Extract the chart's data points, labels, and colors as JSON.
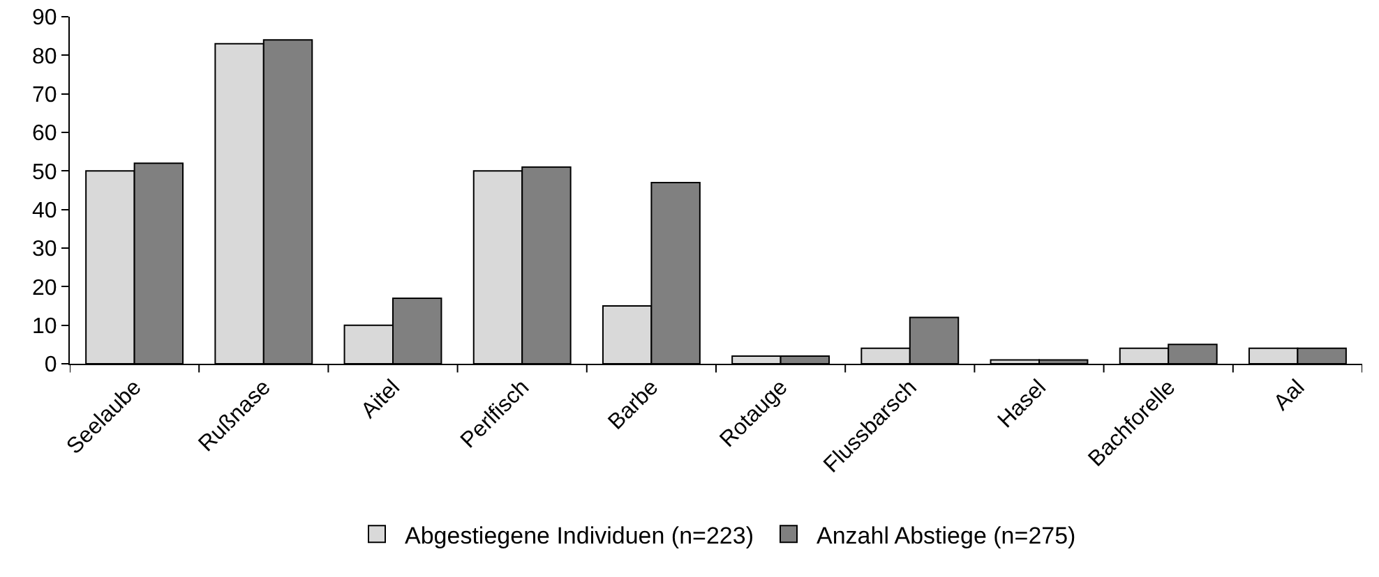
{
  "chart_data": {
    "type": "bar",
    "categories": [
      "Seelaube",
      "Rußnase",
      "Aitel",
      "Perlfisch",
      "Barbe",
      "Rotauge",
      "Flussbarsch",
      "Hasel",
      "Bachforelle",
      "Aal"
    ],
    "series": [
      {
        "name": "Abgestiegene Individuen (n=223)",
        "color": "#d9d9d9",
        "values": [
          50,
          83,
          10,
          50,
          15,
          2,
          4,
          1,
          4,
          4
        ]
      },
      {
        "name": "Anzahl Abstiege (n=275)",
        "color": "#808080",
        "values": [
          52,
          84,
          17,
          51,
          47,
          2,
          12,
          1,
          5,
          4
        ]
      }
    ],
    "ylim": [
      0,
      90
    ],
    "yticks": [
      0,
      10,
      20,
      30,
      40,
      50,
      60,
      70,
      80,
      90
    ],
    "grid": false,
    "legend": "bottom"
  }
}
